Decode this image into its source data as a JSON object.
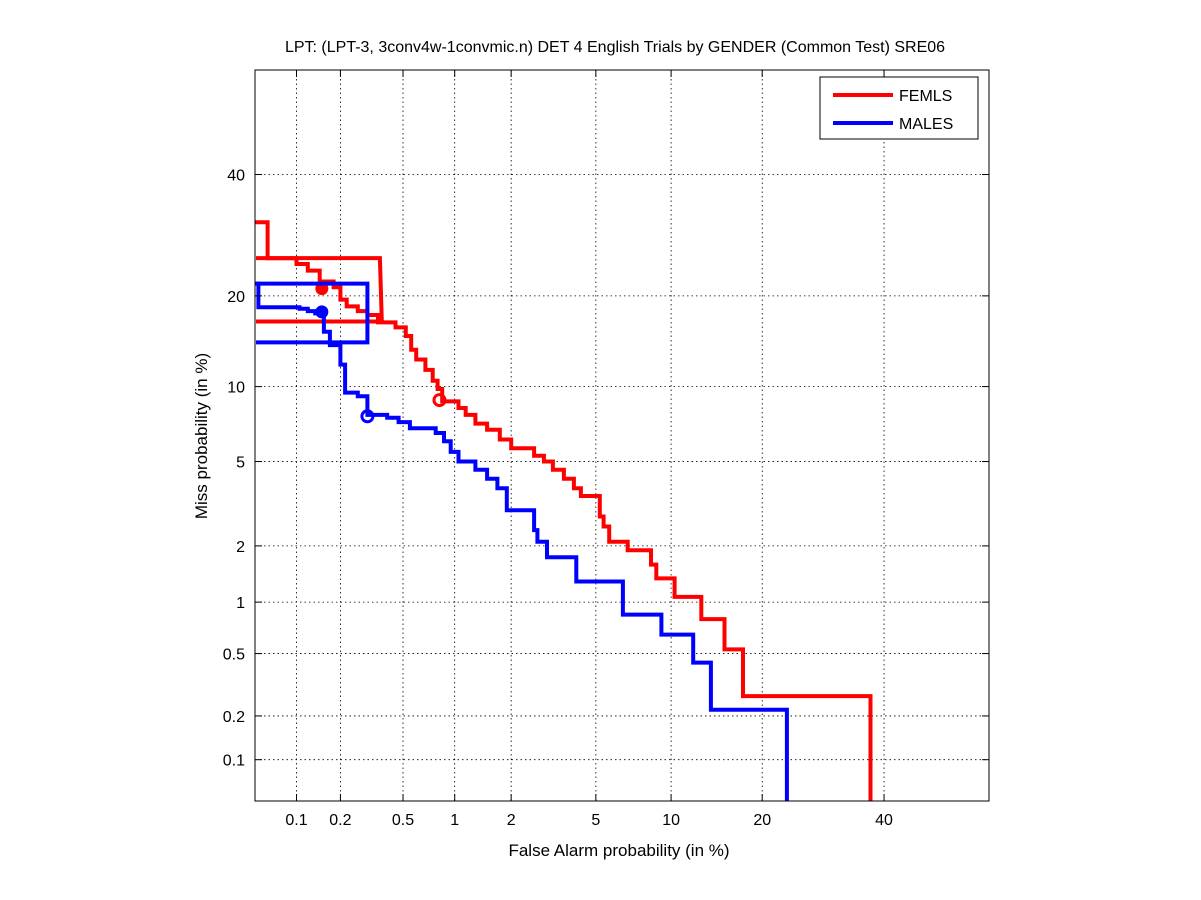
{
  "chart_data": {
    "type": "line",
    "title": "LPT: (LPT-3, 3conv4w-1convmic.n) DET 4 English Trials by GENDER (Common Test) SRE06",
    "xlabel": "False Alarm probability (in %)",
    "ylabel": "Miss probability (in %)",
    "scale": "normal-deviate (probit)",
    "xlim": [
      0.05,
      60
    ],
    "ylim": [
      0.05,
      60
    ],
    "x_ticks": [
      {
        "value": 0.1,
        "label": "0.1"
      },
      {
        "value": 0.2,
        "label": "0.2"
      },
      {
        "value": 0.5,
        "label": "0.5"
      },
      {
        "value": 1,
        "label": "1"
      },
      {
        "value": 2,
        "label": "2"
      },
      {
        "value": 5,
        "label": "5"
      },
      {
        "value": 10,
        "label": "10"
      },
      {
        "value": 20,
        "label": "20"
      },
      {
        "value": 40,
        "label": "40"
      }
    ],
    "y_ticks": [
      {
        "value": 0.1,
        "label": "0.1"
      },
      {
        "value": 0.2,
        "label": "0.2"
      },
      {
        "value": 0.5,
        "label": "0.5"
      },
      {
        "value": 1,
        "label": "1"
      },
      {
        "value": 2,
        "label": "2"
      },
      {
        "value": 5,
        "label": "5"
      },
      {
        "value": 10,
        "label": "10"
      },
      {
        "value": 20,
        "label": "20"
      },
      {
        "value": 40,
        "label": "40"
      }
    ],
    "grid": true,
    "legend_position": "top-right",
    "series": [
      {
        "name": "FEMLS",
        "color": "#ff0000",
        "det_curve": [
          [
            0.05,
            31.4
          ],
          [
            0.062,
            31.4
          ],
          [
            0.062,
            25.5
          ],
          [
            0.1,
            25.5
          ],
          [
            0.1,
            24.6
          ],
          [
            0.12,
            24.6
          ],
          [
            0.12,
            23.6
          ],
          [
            0.145,
            23.6
          ],
          [
            0.145,
            22.0
          ],
          [
            0.18,
            22.0
          ],
          [
            0.18,
            21.2
          ],
          [
            0.2,
            21.2
          ],
          [
            0.2,
            19.5
          ],
          [
            0.22,
            19.5
          ],
          [
            0.22,
            18.6
          ],
          [
            0.26,
            18.6
          ],
          [
            0.26,
            18.0
          ],
          [
            0.3,
            18.0
          ],
          [
            0.3,
            17.5
          ],
          [
            0.35,
            17.5
          ],
          [
            0.35,
            16.6
          ],
          [
            0.45,
            16.6
          ],
          [
            0.45,
            16.0
          ],
          [
            0.52,
            16.0
          ],
          [
            0.52,
            15.0
          ],
          [
            0.56,
            15.0
          ],
          [
            0.56,
            13.5
          ],
          [
            0.6,
            13.5
          ],
          [
            0.6,
            12.5
          ],
          [
            0.68,
            12.5
          ],
          [
            0.68,
            11.5
          ],
          [
            0.75,
            11.5
          ],
          [
            0.75,
            10.5
          ],
          [
            0.8,
            10.5
          ],
          [
            0.8,
            9.8
          ],
          [
            0.85,
            9.8
          ],
          [
            0.85,
            8.8
          ],
          [
            1.05,
            8.8
          ],
          [
            1.05,
            8.3
          ],
          [
            1.15,
            8.3
          ],
          [
            1.15,
            7.8
          ],
          [
            1.3,
            7.8
          ],
          [
            1.3,
            7.2
          ],
          [
            1.5,
            7.2
          ],
          [
            1.5,
            6.8
          ],
          [
            1.75,
            6.8
          ],
          [
            1.75,
            6.2
          ],
          [
            2.0,
            6.2
          ],
          [
            2.0,
            5.7
          ],
          [
            2.6,
            5.7
          ],
          [
            2.6,
            5.3
          ],
          [
            2.9,
            5.3
          ],
          [
            2.9,
            5.0
          ],
          [
            3.2,
            5.0
          ],
          [
            3.2,
            4.6
          ],
          [
            3.6,
            4.6
          ],
          [
            3.6,
            4.2
          ],
          [
            4.0,
            4.2
          ],
          [
            4.0,
            3.8
          ],
          [
            4.3,
            3.8
          ],
          [
            4.3,
            3.5
          ],
          [
            5.2,
            3.5
          ],
          [
            5.2,
            2.8
          ],
          [
            5.4,
            2.8
          ],
          [
            5.4,
            2.5
          ],
          [
            5.7,
            2.5
          ],
          [
            5.7,
            2.1
          ],
          [
            6.8,
            2.1
          ],
          [
            6.8,
            1.9
          ],
          [
            8.4,
            1.9
          ],
          [
            8.4,
            1.6
          ],
          [
            8.8,
            1.6
          ],
          [
            8.8,
            1.35
          ],
          [
            10.3,
            1.35
          ],
          [
            10.3,
            1.07
          ],
          [
            12.8,
            1.07
          ],
          [
            12.8,
            0.8
          ],
          [
            15.3,
            0.8
          ],
          [
            15.3,
            0.53
          ],
          [
            17.5,
            0.53
          ],
          [
            17.5,
            0.27
          ],
          [
            37.5,
            0.27
          ],
          [
            37.5,
            0.05
          ]
        ],
        "rect_lower_right": [
          0.37,
          16.7
        ],
        "rect_upper_right": [
          0.36,
          25.5
        ],
        "min_dcf_point": [
          0.15,
          21.0
        ],
        "eer_point": [
          0.82,
          8.9
        ]
      },
      {
        "name": "MALES",
        "color": "#0000ff",
        "det_curve": [
          [
            0.05,
            21.7
          ],
          [
            0.053,
            21.7
          ],
          [
            0.053,
            18.5
          ],
          [
            0.105,
            18.5
          ],
          [
            0.105,
            18.3
          ],
          [
            0.12,
            18.3
          ],
          [
            0.12,
            18.0
          ],
          [
            0.135,
            18.0
          ],
          [
            0.135,
            17.7
          ],
          [
            0.155,
            17.7
          ],
          [
            0.155,
            15.5
          ],
          [
            0.17,
            15.5
          ],
          [
            0.17,
            14.0
          ],
          [
            0.2,
            14.0
          ],
          [
            0.2,
            12.0
          ],
          [
            0.215,
            12.0
          ],
          [
            0.215,
            9.5
          ],
          [
            0.26,
            9.5
          ],
          [
            0.26,
            9.2
          ],
          [
            0.3,
            9.2
          ],
          [
            0.3,
            7.8
          ],
          [
            0.4,
            7.8
          ],
          [
            0.4,
            7.6
          ],
          [
            0.47,
            7.6
          ],
          [
            0.47,
            7.3
          ],
          [
            0.55,
            7.3
          ],
          [
            0.55,
            6.9
          ],
          [
            0.78,
            6.9
          ],
          [
            0.78,
            6.6
          ],
          [
            0.87,
            6.6
          ],
          [
            0.87,
            6.1
          ],
          [
            0.95,
            6.1
          ],
          [
            0.95,
            5.5
          ],
          [
            1.05,
            5.5
          ],
          [
            1.05,
            5.0
          ],
          [
            1.3,
            5.0
          ],
          [
            1.3,
            4.6
          ],
          [
            1.5,
            4.6
          ],
          [
            1.5,
            4.2
          ],
          [
            1.7,
            4.2
          ],
          [
            1.7,
            3.8
          ],
          [
            1.9,
            3.8
          ],
          [
            1.9,
            3.0
          ],
          [
            2.6,
            3.0
          ],
          [
            2.6,
            2.4
          ],
          [
            2.7,
            2.4
          ],
          [
            2.7,
            2.1
          ],
          [
            3.0,
            2.1
          ],
          [
            3.0,
            1.75
          ],
          [
            4.1,
            1.75
          ],
          [
            4.1,
            1.3
          ],
          [
            6.5,
            1.3
          ],
          [
            6.5,
            0.85
          ],
          [
            9.2,
            0.85
          ],
          [
            9.2,
            0.65
          ],
          [
            12.0,
            0.65
          ],
          [
            12.0,
            0.44
          ],
          [
            13.8,
            0.44
          ],
          [
            13.8,
            0.22
          ],
          [
            23.5,
            0.22
          ],
          [
            23.5,
            0.05
          ]
        ],
        "rect_lower_right": [
          0.3,
          14.3
        ],
        "rect_upper_right": [
          0.3,
          21.7
        ],
        "min_dcf_point": [
          0.15,
          17.9
        ],
        "eer_point": [
          0.3,
          7.7
        ]
      }
    ]
  }
}
